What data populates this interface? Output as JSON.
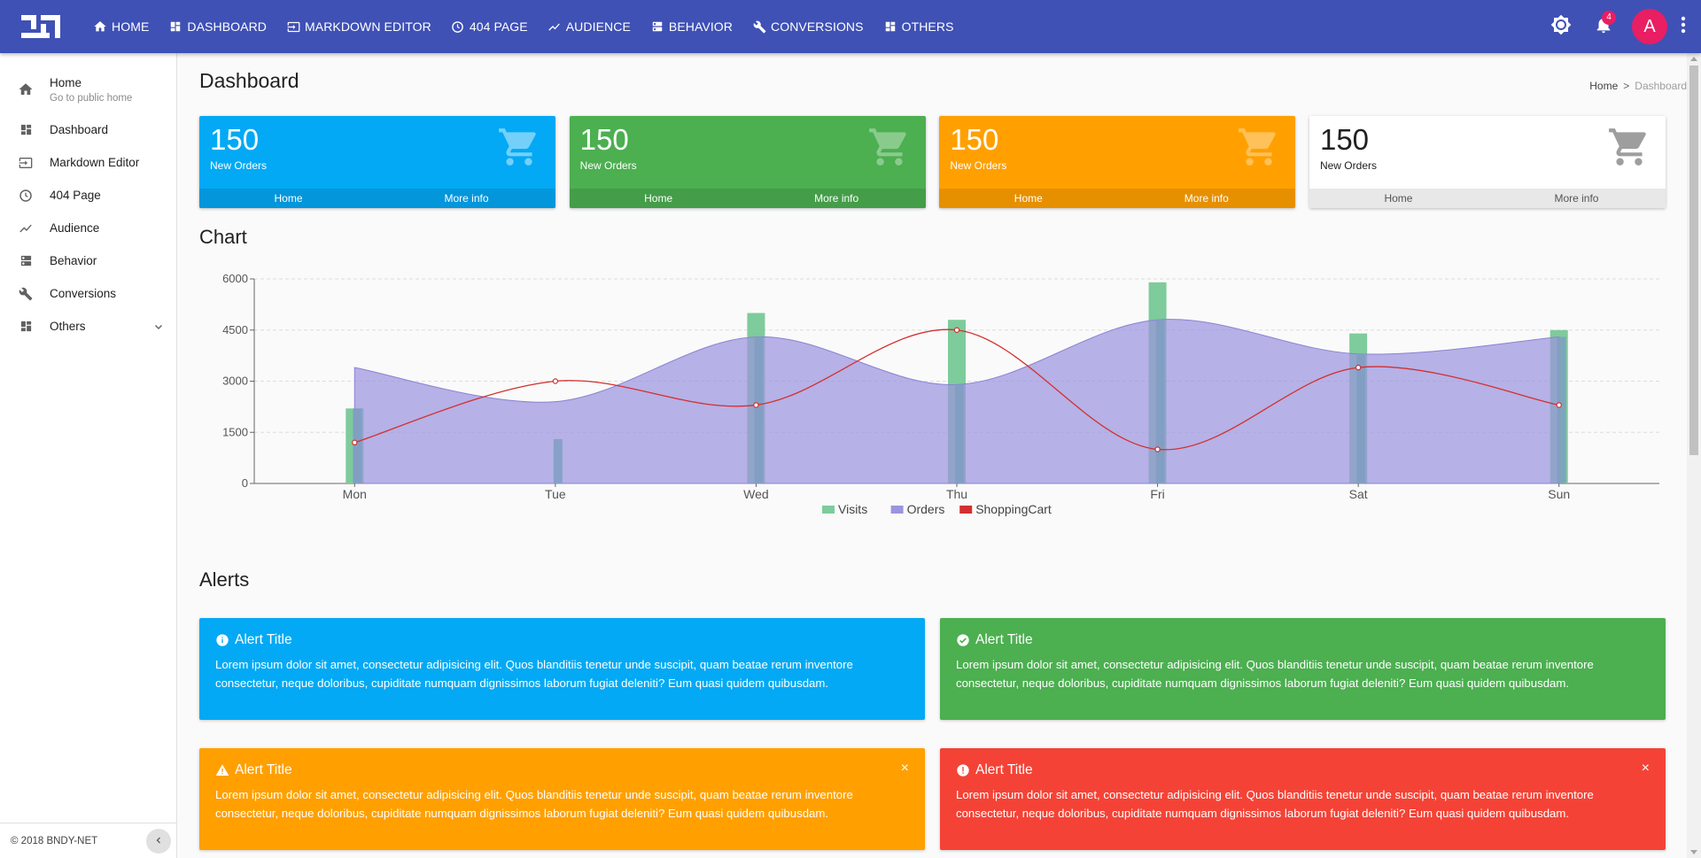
{
  "nav": {
    "items": [
      {
        "label": "HOME",
        "icon": "home-icon"
      },
      {
        "label": "DASHBOARD",
        "icon": "dashboard-icon"
      },
      {
        "label": "MARKDOWN EDITOR",
        "icon": "input-icon"
      },
      {
        "label": "404 PAGE",
        "icon": "clock-icon"
      },
      {
        "label": "AUDIENCE",
        "icon": "trending-icon"
      },
      {
        "label": "BEHAVIOR",
        "icon": "dns-icon"
      },
      {
        "label": "CONVERSIONS",
        "icon": "wrench-icon"
      },
      {
        "label": "OTHERS",
        "icon": "dashboard-icon"
      }
    ],
    "notification_count": "4",
    "avatar_letter": "A",
    "colors": {
      "bar": "#3f51b5",
      "accent": "#e91e63"
    }
  },
  "sidebar": {
    "home": {
      "label": "Home",
      "sub": "Go to public home"
    },
    "items": [
      {
        "label": "Dashboard"
      },
      {
        "label": "Markdown Editor"
      },
      {
        "label": "404 Page"
      },
      {
        "label": "Audience"
      },
      {
        "label": "Behavior"
      },
      {
        "label": "Conversions"
      },
      {
        "label": "Others"
      }
    ],
    "footer": "© 2018 BNDY-NET"
  },
  "page": {
    "title": "Dashboard",
    "breadcrumb": {
      "home": "Home",
      "sep": ">",
      "current": "Dashboard"
    }
  },
  "cards": [
    {
      "value": "150",
      "label": "New Orders",
      "left": "Home",
      "right": "More info",
      "color": "#03a9f4"
    },
    {
      "value": "150",
      "label": "New Orders",
      "left": "Home",
      "right": "More info",
      "color": "#4caf50"
    },
    {
      "value": "150",
      "label": "New Orders",
      "left": "Home",
      "right": "More info",
      "color": "#ffa000"
    },
    {
      "value": "150",
      "label": "New Orders",
      "left": "Home",
      "right": "More info",
      "color": "#ffffff"
    }
  ],
  "sections": {
    "chart": "Chart",
    "alerts": "Alerts"
  },
  "chart_data": {
    "type": "bar",
    "categories": [
      "Mon",
      "Tue",
      "Wed",
      "Thu",
      "Fri",
      "Sat",
      "Sun"
    ],
    "ylim": [
      0,
      6000
    ],
    "yticks": [
      "0",
      "1500",
      "3000",
      "4500",
      "6000"
    ],
    "grid": true,
    "legend_position": "bottom",
    "series": [
      {
        "name": "Visits",
        "type": "bar",
        "color": "#7ecb9b",
        "values": [
          2200,
          null,
          5000,
          4800,
          5900,
          4400,
          4500
        ]
      },
      {
        "name": "Orders",
        "type": "area",
        "color": "#9b94de",
        "values": [
          3400,
          2400,
          4300,
          2900,
          4800,
          3800,
          4300
        ]
      },
      {
        "name": "ShoppingCart",
        "type": "line",
        "color": "#d32f2f",
        "values": [
          1200,
          3000,
          2300,
          4500,
          1000,
          3400,
          2300
        ]
      },
      {
        "name": "",
        "type": "bar",
        "color": "#7f9fc2",
        "values": [
          2200,
          1300,
          4300,
          2900,
          4800,
          3800,
          4300
        ]
      }
    ]
  },
  "alerts": [
    {
      "title": "Alert Title",
      "body": "Lorem ipsum dolor sit amet, consectetur adipisicing elit. Quos blanditiis tenetur unde suscipit, quam beatae rerum inventore consectetur, neque doloribus, cupiditate numquam dignissimos laborum fugiat deleniti? Eum quasi quidem quibusdam.",
      "icon": "info-icon"
    },
    {
      "title": "Alert Title",
      "body": "Lorem ipsum dolor sit amet, consectetur adipisicing elit. Quos blanditiis tenetur unde suscipit, quam beatae rerum inventore consectetur, neque doloribus, cupiditate numquam dignissimos laborum fugiat deleniti? Eum quasi quidem quibusdam.",
      "icon": "check-circle-icon"
    },
    {
      "title": "Alert Title",
      "body": "Lorem ipsum dolor sit amet, consectetur adipisicing elit. Quos blanditiis tenetur unde suscipit, quam beatae rerum inventore consectetur, neque doloribus, cupiditate numquam dignissimos laborum fugiat deleniti? Eum quasi quidem quibusdam.",
      "icon": "warning-icon",
      "close": "×"
    },
    {
      "title": "Alert Title",
      "body": "Lorem ipsum dolor sit amet, consectetur adipisicing elit. Quos blanditiis tenetur unde suscipit, quam beatae rerum inventore consectetur, neque doloribus, cupiditate numquam dignissimos laborum fugiat deleniti? Eum quasi quidem quibusdam.",
      "icon": "error-icon",
      "close": "×"
    }
  ]
}
